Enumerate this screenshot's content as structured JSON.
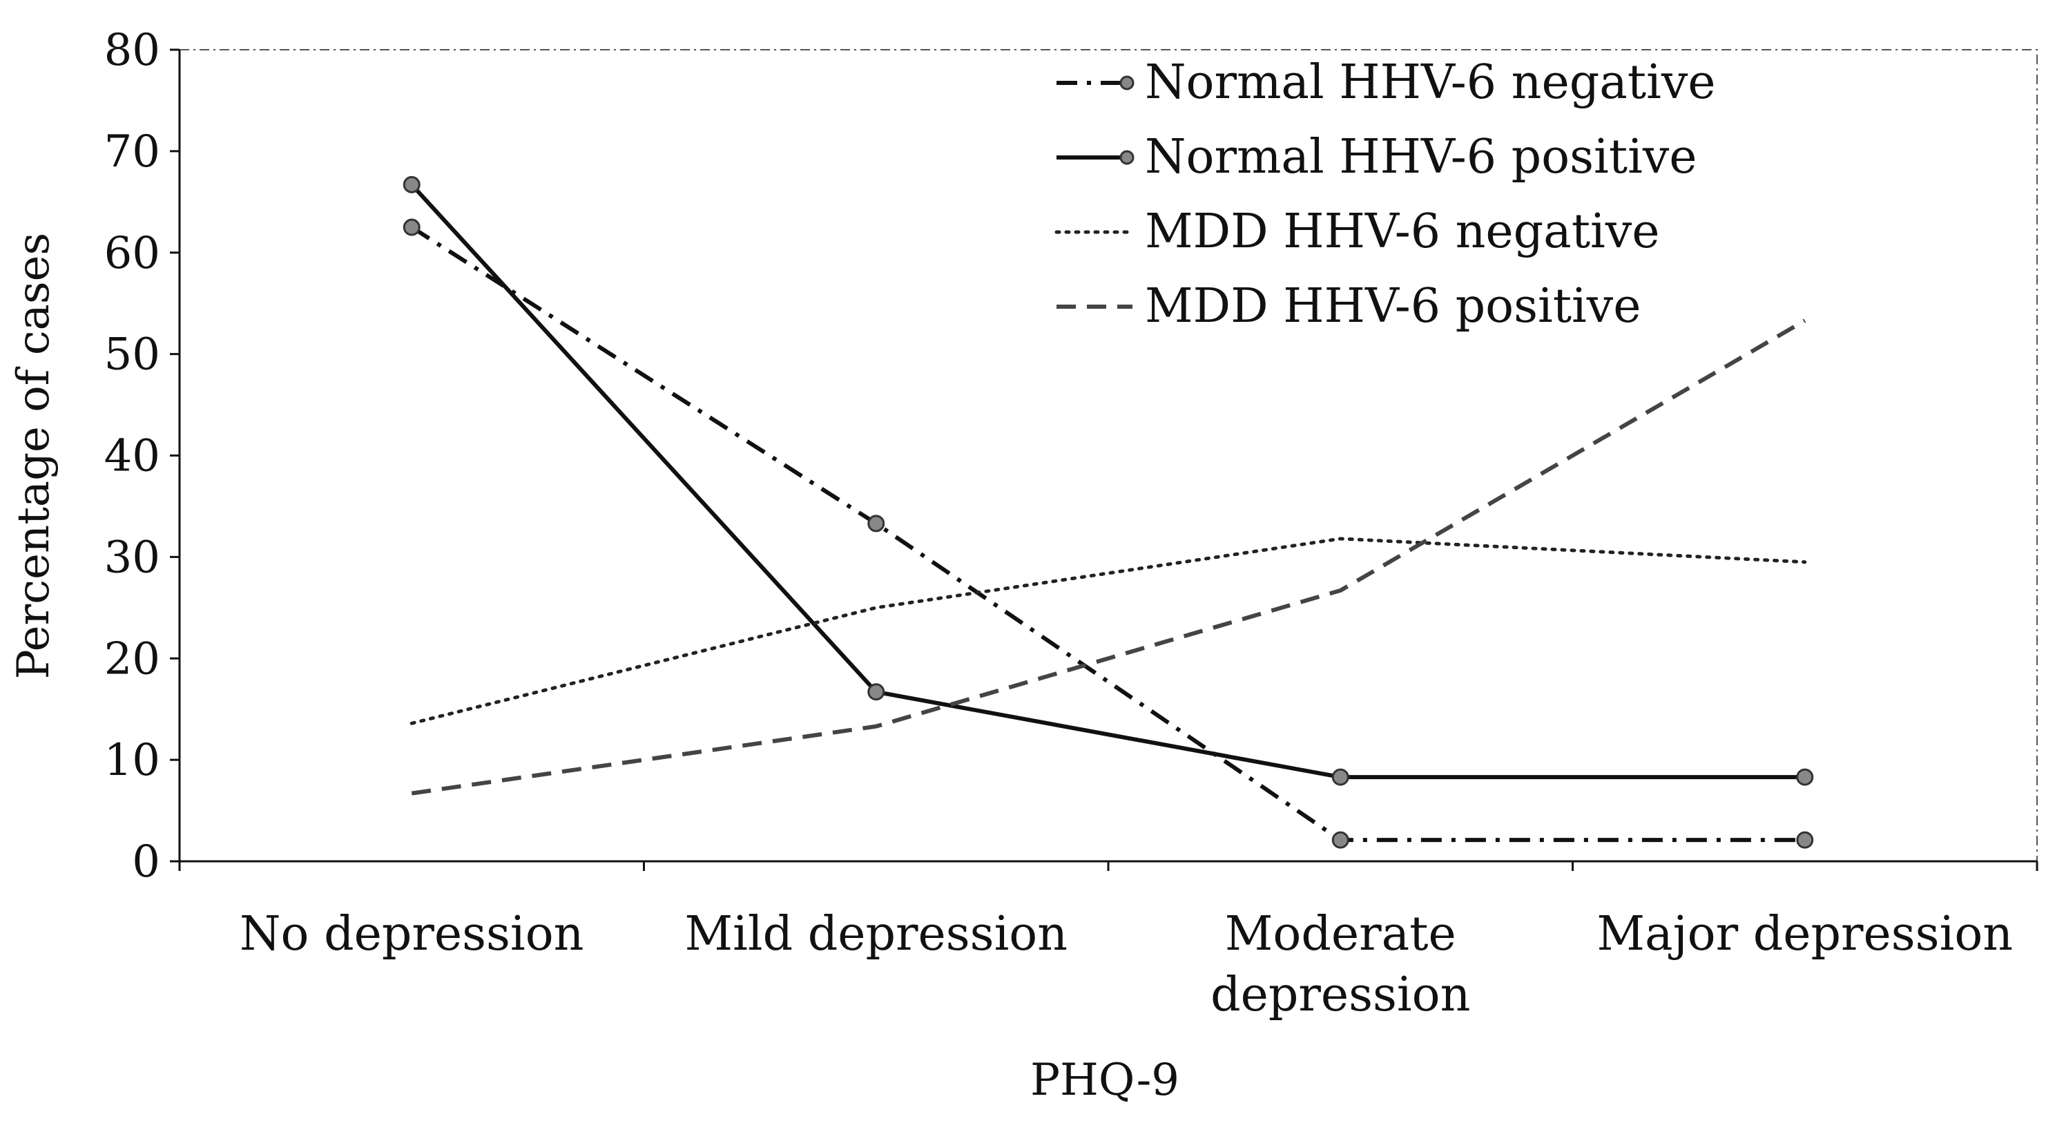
{
  "chart_data": {
    "type": "line",
    "title": "",
    "xlabel": "PHQ-9",
    "ylabel": "Percentage of cases",
    "ylim": [
      0,
      80
    ],
    "yticks": [
      0,
      10,
      20,
      30,
      40,
      50,
      60,
      70,
      80
    ],
    "categories": [
      [
        "No depression"
      ],
      [
        "Mild depression"
      ],
      [
        "Moderate",
        "depression"
      ],
      [
        "Major depression"
      ]
    ],
    "grid": false,
    "legend_position": "top-right",
    "series": [
      {
        "name": "Normal HHV-6 negative",
        "values": [
          62.5,
          33.3,
          2.1,
          2.1
        ],
        "style": "dashdot",
        "markers": true,
        "color": "#111111",
        "marker_color": "#888888"
      },
      {
        "name": "Normal HHV-6 positive",
        "values": [
          66.7,
          16.7,
          8.3,
          8.3
        ],
        "style": "solid",
        "markers": true,
        "color": "#111111",
        "marker_color": "#888888"
      },
      {
        "name": "MDD HHV-6 negative",
        "values": [
          13.6,
          25.0,
          31.8,
          29.5
        ],
        "style": "dotted",
        "markers": false,
        "color": "#222222"
      },
      {
        "name": "MDD HHV-6 positive",
        "values": [
          6.7,
          13.3,
          26.7,
          53.3
        ],
        "style": "dashed",
        "markers": false,
        "color": "#444444"
      }
    ]
  }
}
